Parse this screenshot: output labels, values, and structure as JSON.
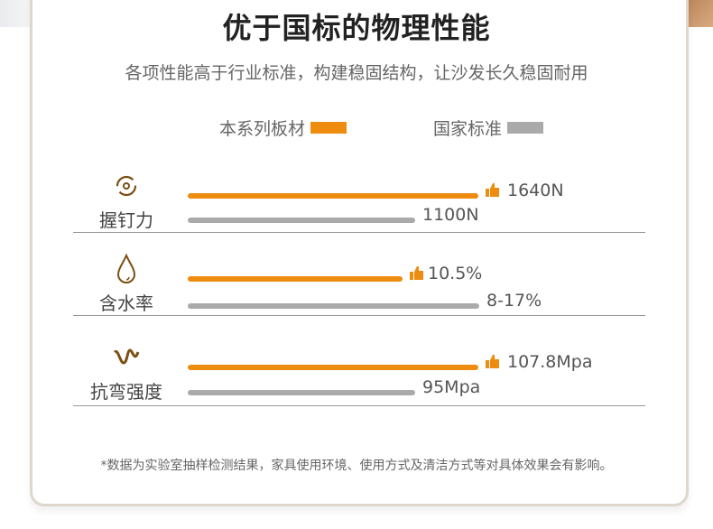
{
  "header": {
    "title": "优于国标的物理性能",
    "subtitle": "各项性能高于行业标准，构建稳固结构，让沙发长久稳固耐用"
  },
  "legend": [
    {
      "label": "本系列板材",
      "color": "#ee8c10"
    },
    {
      "label": "国家标准",
      "color": "#aaaaaa"
    }
  ],
  "chart_data": {
    "type": "bar",
    "orientation": "horizontal",
    "title": "优于国标的物理性能",
    "categories": [
      "握钉力",
      "含水率",
      "抗弯强度"
    ],
    "series": [
      {
        "name": "本系列板材",
        "color": "#ee8c10",
        "labels": [
          "1640N",
          "10.5%",
          "107.8Mpa"
        ],
        "values": [
          1640,
          10.5,
          107.8
        ],
        "relative_length": [
          1.0,
          0.74,
          1.0
        ]
      },
      {
        "name": "国家标准",
        "color": "#aaaaaa",
        "labels": [
          "1100N",
          "8-17%",
          "95Mpa"
        ],
        "values": [
          1100,
          17,
          95
        ],
        "relative_length": [
          0.78,
          1.0,
          0.78
        ]
      }
    ]
  },
  "rows": [
    {
      "label": "握钉力",
      "icon": "grip-rotate-icon"
    },
    {
      "label": "含水率",
      "icon": "water-drop-icon"
    },
    {
      "label": "抗弯强度",
      "icon": "bend-wave-icon"
    }
  ],
  "footnote": "*数据为实验室抽样检测结果，家具使用环境、使用方式及清洁方式等对具体效果会有影响。"
}
